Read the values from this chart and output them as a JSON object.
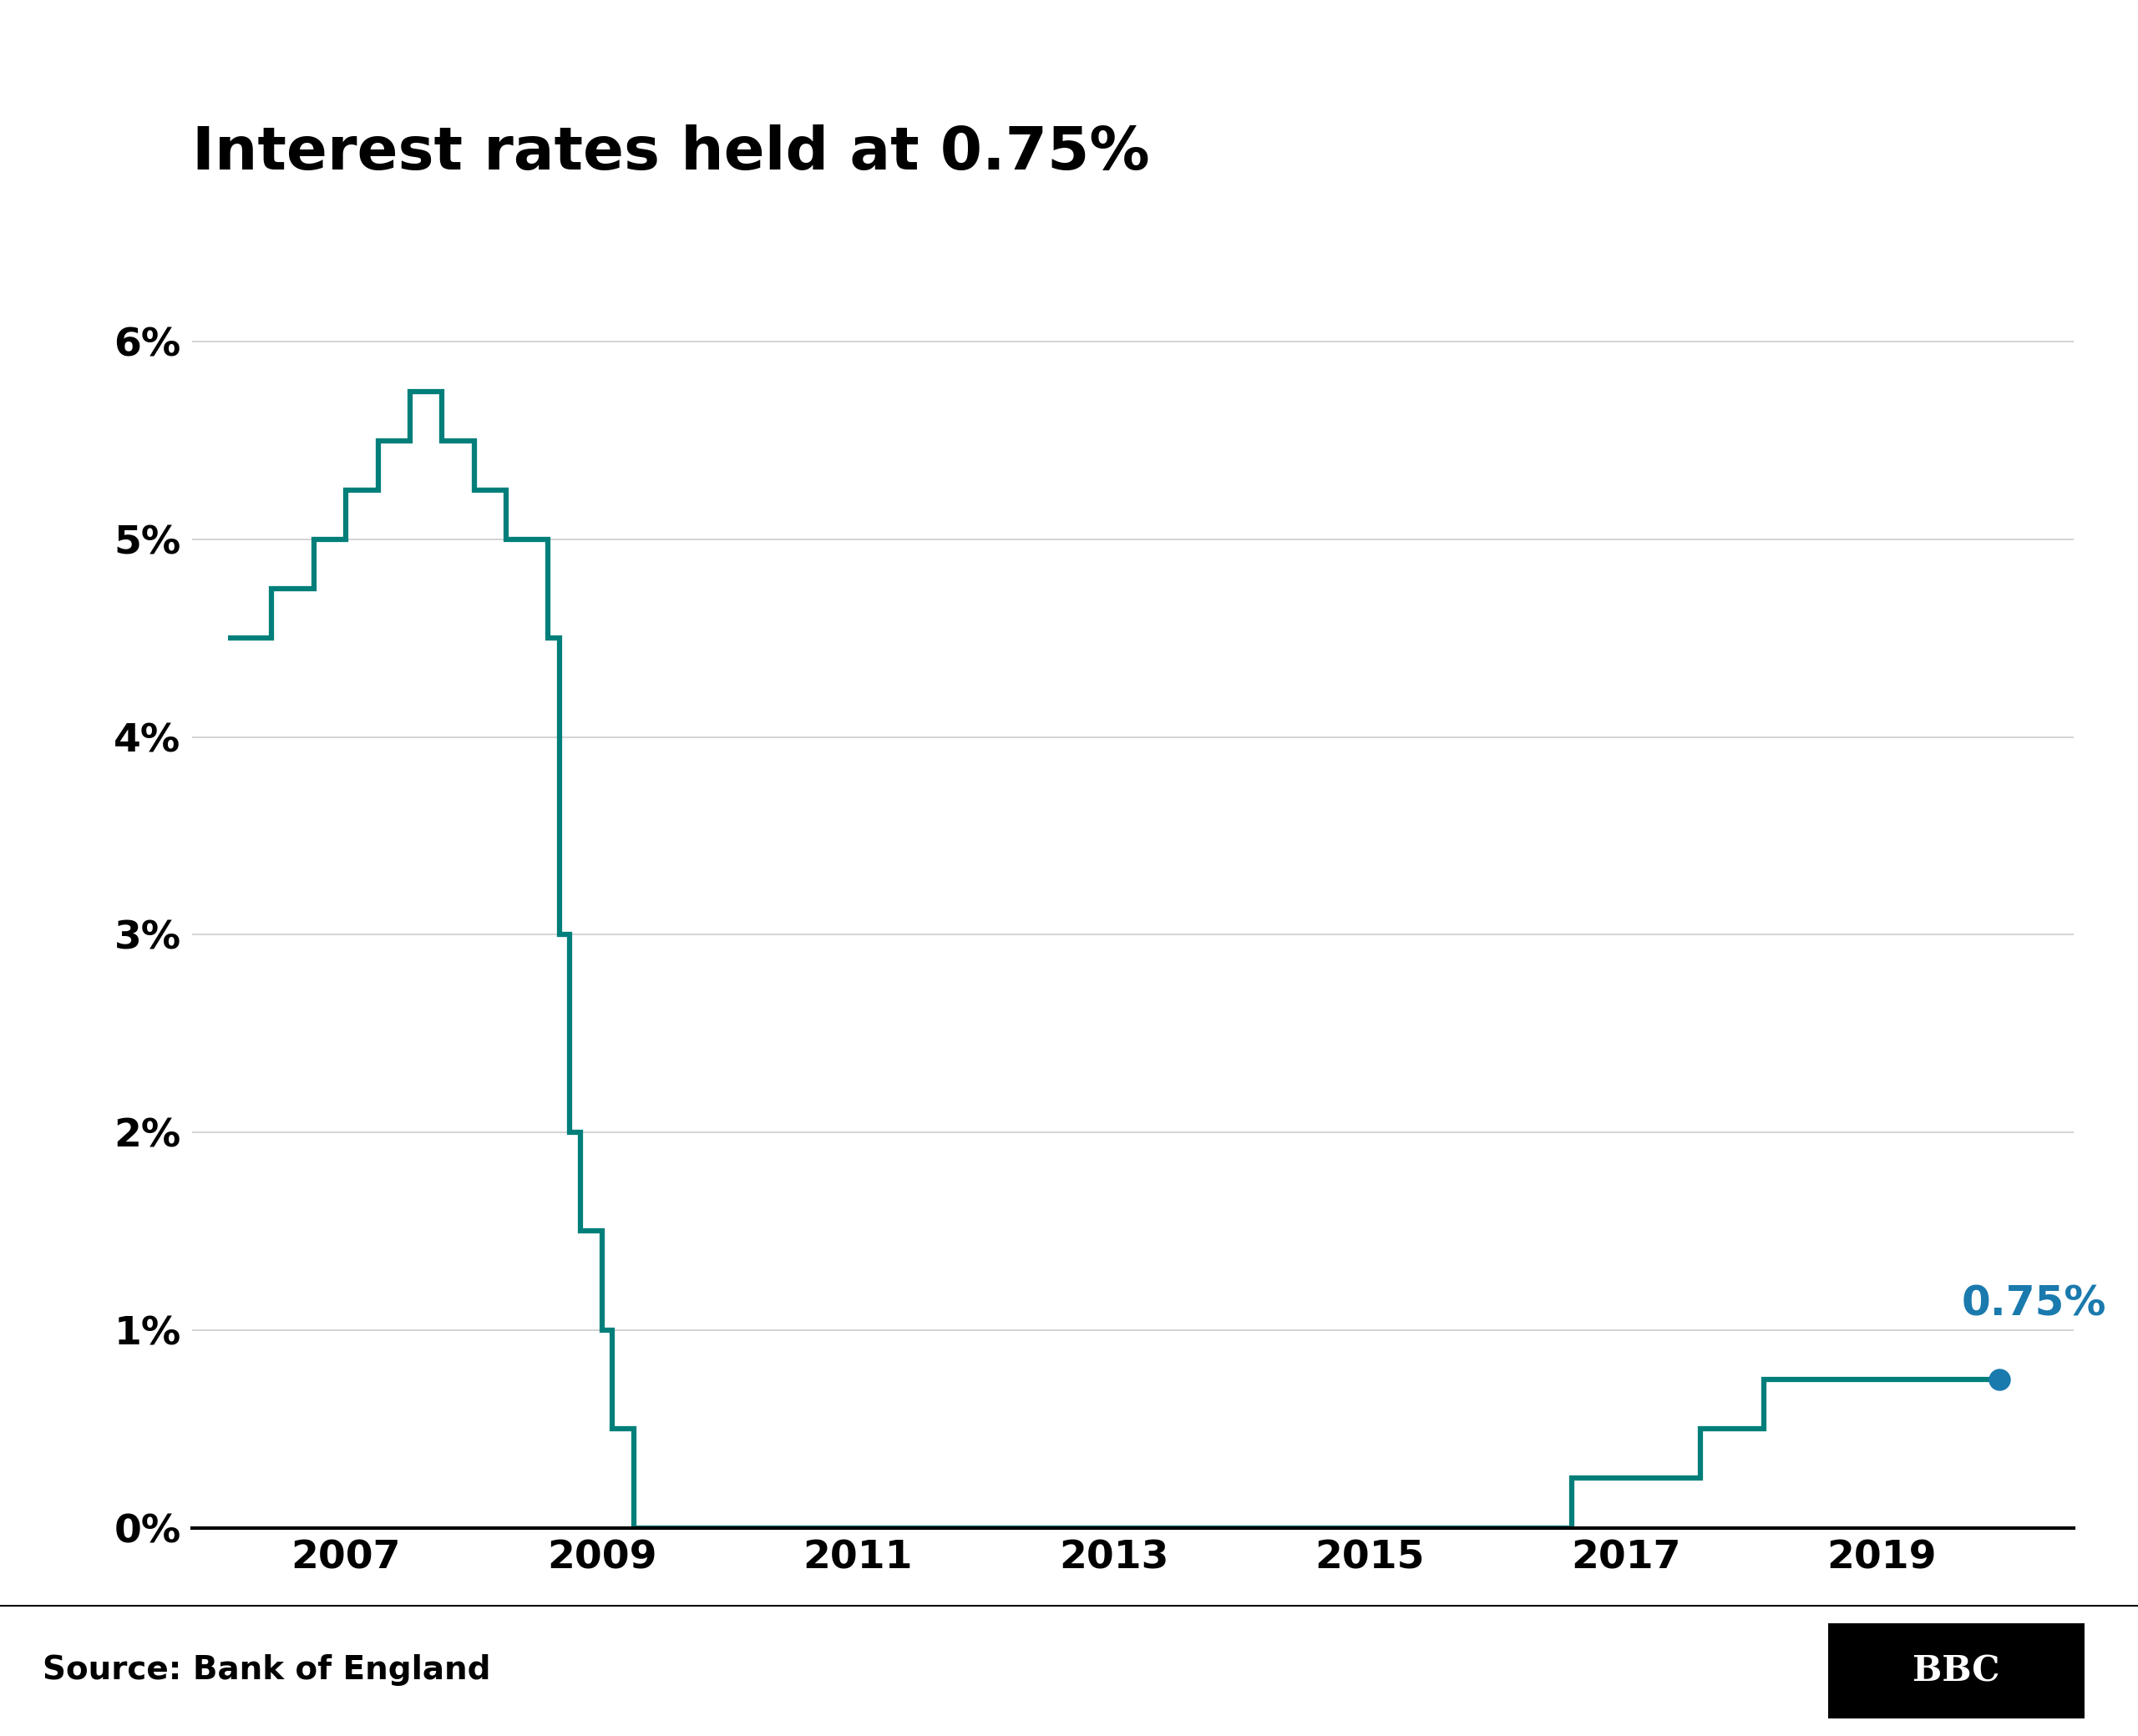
{
  "title": "Interest rates held at 0.75%",
  "source": "Source: Bank of England",
  "line_color": "#007f7a",
  "annotation_color": "#1a7aad",
  "annotation_text": "0.75%",
  "background_color": "#ffffff",
  "grid_color": "#cccccc",
  "ylim": [
    0,
    6.5
  ],
  "yticks": [
    0,
    1,
    2,
    3,
    4,
    5,
    6
  ],
  "ytick_labels": [
    "0%",
    "1%",
    "2%",
    "3%",
    "4%",
    "5%",
    "6%"
  ],
  "xticks": [
    2007,
    2009,
    2011,
    2013,
    2015,
    2017,
    2019
  ],
  "xlim": [
    2005.8,
    2020.5
  ],
  "data": [
    [
      2006.08,
      4.5
    ],
    [
      2006.42,
      4.5
    ],
    [
      2006.42,
      4.75
    ],
    [
      2006.75,
      4.75
    ],
    [
      2006.75,
      5.0
    ],
    [
      2007.0,
      5.0
    ],
    [
      2007.0,
      5.25
    ],
    [
      2007.25,
      5.25
    ],
    [
      2007.25,
      5.5
    ],
    [
      2007.5,
      5.5
    ],
    [
      2007.5,
      5.75
    ],
    [
      2007.75,
      5.75
    ],
    [
      2007.75,
      5.5
    ],
    [
      2008.0,
      5.5
    ],
    [
      2008.0,
      5.25
    ],
    [
      2008.25,
      5.25
    ],
    [
      2008.25,
      5.0
    ],
    [
      2008.58,
      5.0
    ],
    [
      2008.58,
      4.5
    ],
    [
      2008.67,
      4.5
    ],
    [
      2008.67,
      3.0
    ],
    [
      2008.75,
      3.0
    ],
    [
      2008.75,
      2.0
    ],
    [
      2008.83,
      2.0
    ],
    [
      2008.83,
      1.5
    ],
    [
      2009.0,
      1.5
    ],
    [
      2009.0,
      1.0
    ],
    [
      2009.08,
      1.0
    ],
    [
      2009.08,
      0.5
    ],
    [
      2009.25,
      0.5
    ],
    [
      2009.25,
      0.0
    ],
    [
      2016.58,
      0.0
    ],
    [
      2016.58,
      0.25
    ],
    [
      2017.58,
      0.25
    ],
    [
      2017.58,
      0.5
    ],
    [
      2018.08,
      0.5
    ],
    [
      2018.08,
      0.75
    ],
    [
      2019.92,
      0.75
    ]
  ],
  "endpoint_x": 2019.92,
  "endpoint_y": 0.75,
  "title_fontsize": 52,
  "tick_fontsize": 34,
  "annotation_fontsize": 36,
  "source_fontsize": 28,
  "bbc_fontsize": 30,
  "linewidth": 4.5
}
